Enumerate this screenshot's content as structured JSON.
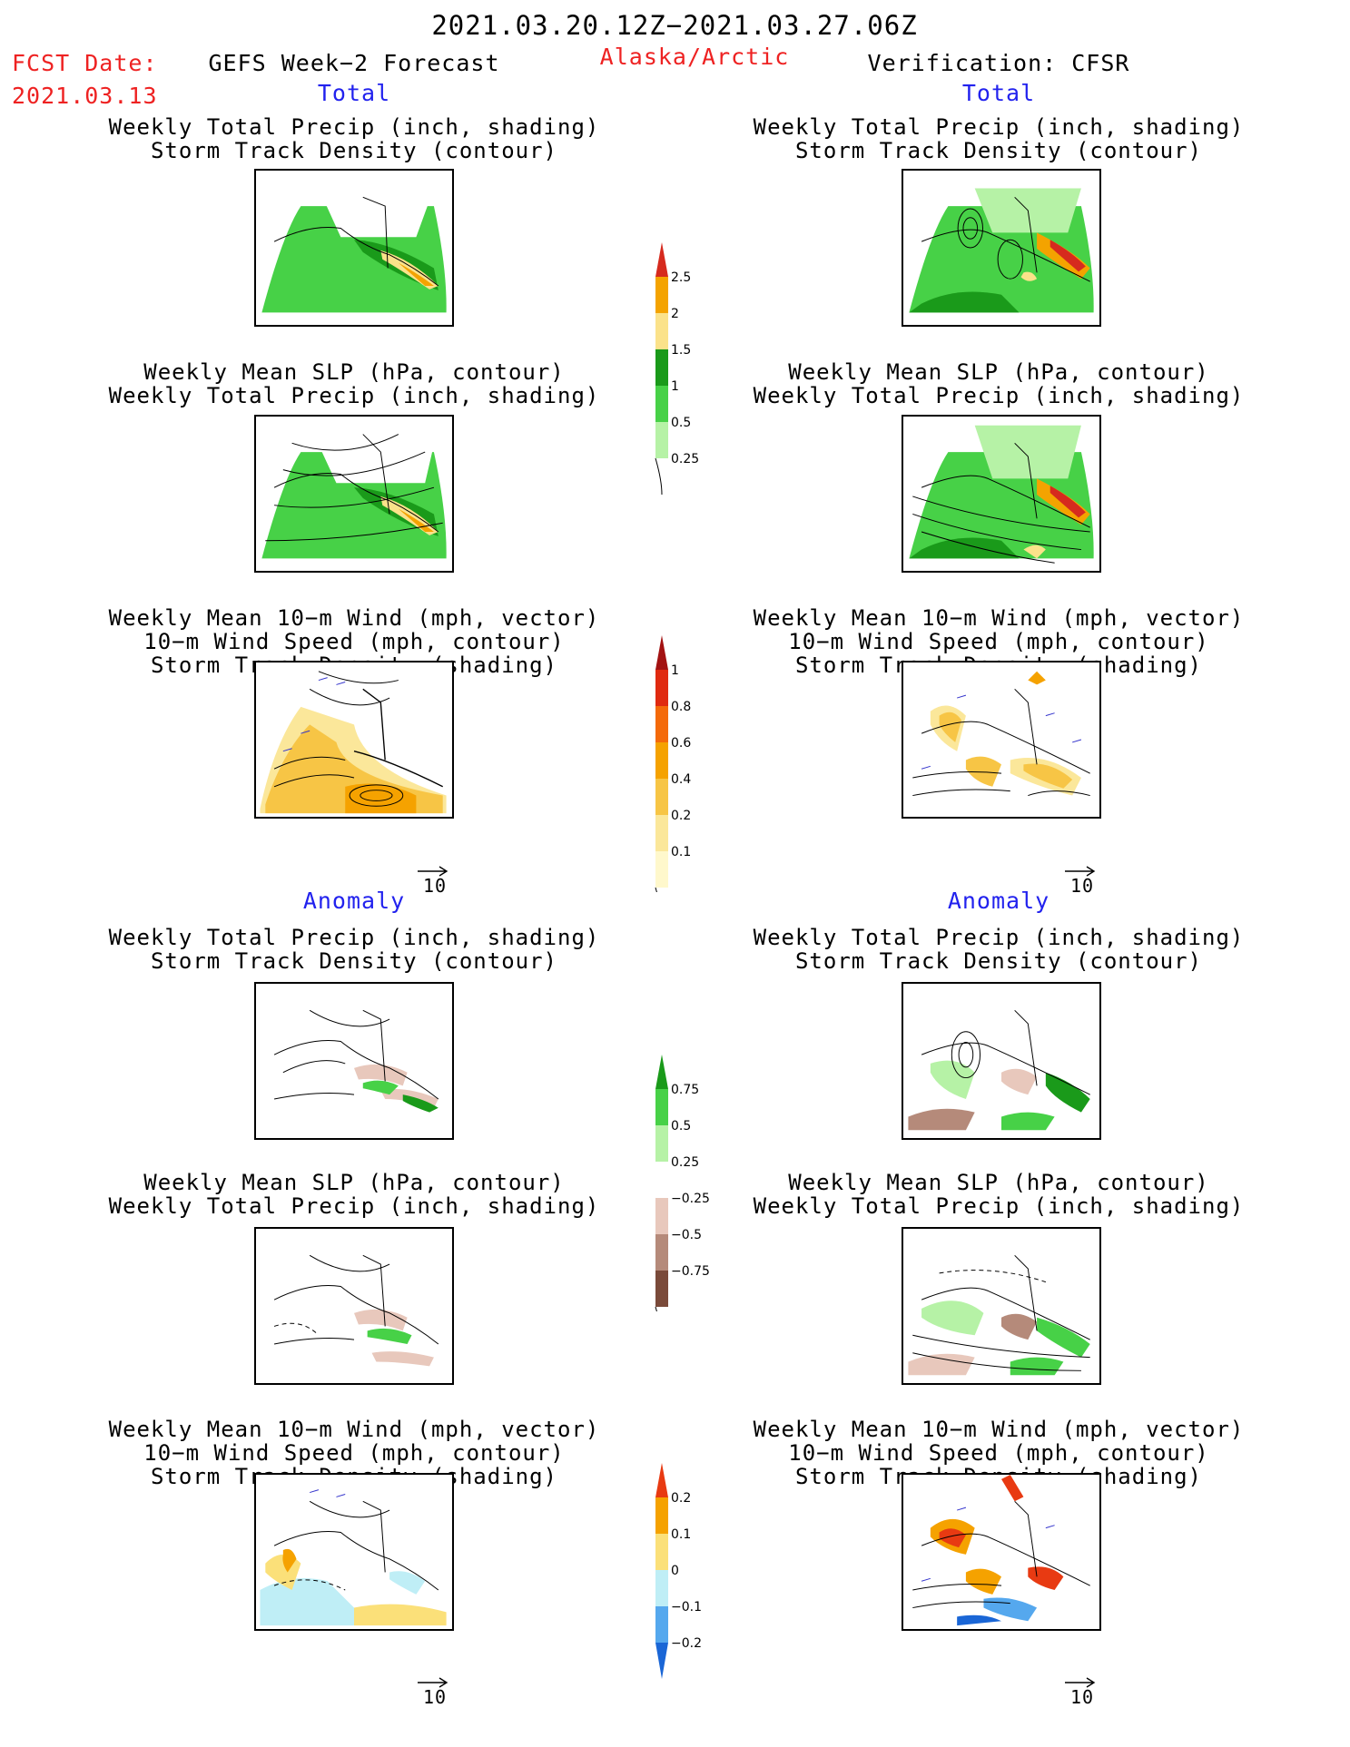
{
  "header": {
    "date_range": "2021.03.20.12Z−2021.03.27.06Z",
    "fcst_label": "FCST Date:",
    "fcst_date": "2021.03.13",
    "model": "GEFS Week−2 Forecast",
    "region": "Alaska/Arctic",
    "verification": "Verification: CFSR"
  },
  "section_labels": {
    "total": "Total",
    "anomaly": "Anomaly"
  },
  "panel_titles": {
    "precip_storm": [
      "Weekly Total Precip (inch, shading)",
      "Storm Track Density (contour)"
    ],
    "slp_precip": [
      "Weekly Mean SLP (hPa, contour)",
      "Weekly Total Precip (inch, shading)"
    ],
    "wind_storm": [
      "Weekly Mean 10−m Wind (mph, vector)",
      "10−m Wind Speed (mph, contour)",
      "Storm Track Density (shading)"
    ]
  },
  "reference_vector": "10",
  "chart_data": [
    {
      "type": "heatmap",
      "name": "total_precip_colorbar",
      "ticks": [
        "2.5",
        "2",
        "1.5",
        "1",
        "0.5",
        "0.25"
      ],
      "colors": [
        "#d62a1e",
        "#f4a300",
        "#fbe28a",
        "#1a9a1a",
        "#47d147",
        "#b6f2a6"
      ]
    },
    {
      "type": "heatmap",
      "name": "total_storm_density_colorbar",
      "ticks": [
        "1",
        "0.8",
        "0.6",
        "0.4",
        "0.2",
        "0.1"
      ],
      "colors": [
        "#a31212",
        "#e02a10",
        "#f46a0a",
        "#f5a200",
        "#f7c545",
        "#fbe79a",
        "#fff8cc"
      ]
    },
    {
      "type": "heatmap",
      "name": "anomaly_precip_colorbar",
      "ticks": [
        "0.75",
        "0.5",
        "0.25",
        "−0.25",
        "−0.5",
        "−0.75"
      ],
      "colors": [
        "#1a9a1a",
        "#47d147",
        "#b6f2a6",
        "#ffffff",
        "#e8c8bc",
        "#b58a7a",
        "#7a4a3a"
      ]
    },
    {
      "type": "heatmap",
      "name": "anomaly_storm_density_colorbar",
      "ticks": [
        "0.2",
        "0.1",
        "0",
        "−0.1",
        "−0.2"
      ],
      "colors": [
        "#e83a12",
        "#f5a200",
        "#fbe079",
        "#bfeef6",
        "#55a8ee",
        "#1a66d6"
      ]
    }
  ]
}
